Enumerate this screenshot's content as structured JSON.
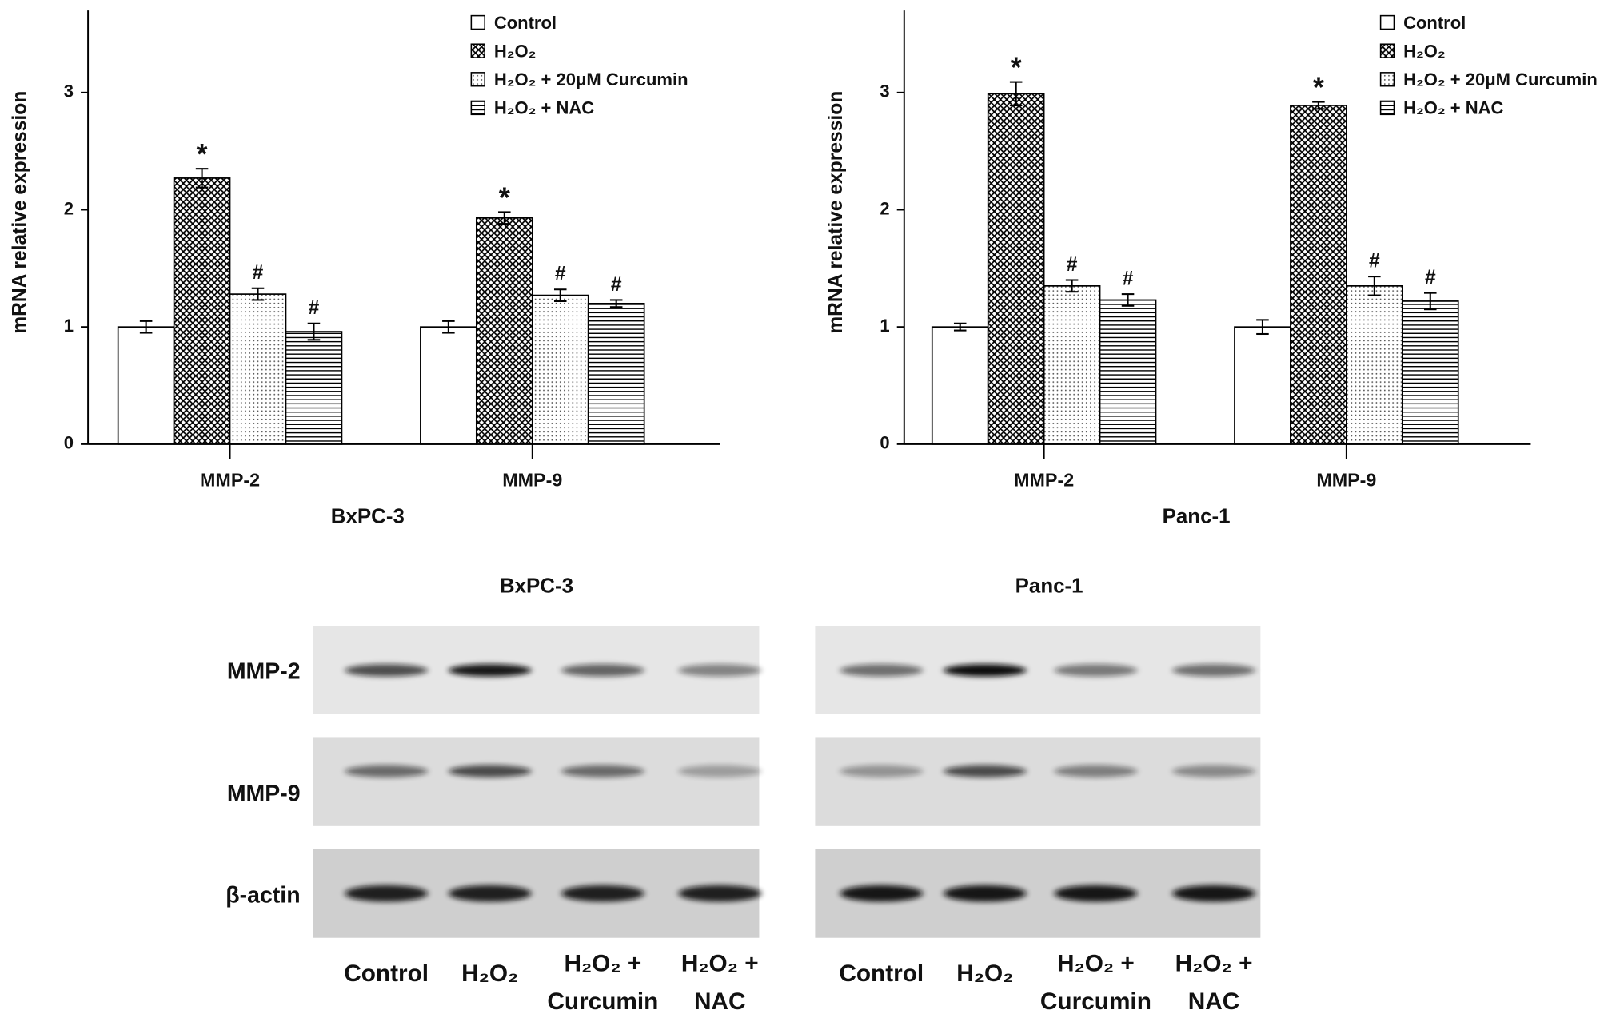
{
  "chart_data": [
    {
      "type": "bar",
      "ylabel": "mRNA relative expression",
      "xlabel": "BxPC-3",
      "categories": [
        "MMP-2",
        "MMP-9"
      ],
      "ylim": [
        0,
        3.7
      ],
      "yticks": [
        0,
        1,
        2,
        3
      ],
      "series": [
        {
          "name": "Control",
          "color": "#000000",
          "pattern": "none",
          "values": [
            1.0,
            1.0
          ],
          "errors": [
            0.05,
            0.05
          ],
          "annotations": [
            null,
            null
          ]
        },
        {
          "name": "H₂O₂",
          "color": "#000000",
          "pattern": "crosshatch",
          "values": [
            2.27,
            1.93
          ],
          "errors": [
            0.08,
            0.05
          ],
          "annotations": [
            "*",
            "*"
          ]
        },
        {
          "name": "H₂O₂ + 20μM Curcumin",
          "color": "#000000",
          "pattern": "dots",
          "values": [
            1.28,
            1.27
          ],
          "errors": [
            0.05,
            0.05
          ],
          "annotations": [
            "#",
            "#"
          ]
        },
        {
          "name": "H₂O₂ + NAC",
          "color": "#000000",
          "pattern": "hlines",
          "values": [
            0.96,
            1.2
          ],
          "errors": [
            0.07,
            0.03
          ],
          "annotations": [
            "#",
            "#"
          ]
        }
      ]
    },
    {
      "type": "bar",
      "ylabel": "mRNA relative expression",
      "xlabel": "Panc-1",
      "categories": [
        "MMP-2",
        "MMP-9"
      ],
      "ylim": [
        0,
        3.7
      ],
      "yticks": [
        0,
        1,
        2,
        3
      ],
      "series": [
        {
          "name": "Control",
          "color": "#000000",
          "pattern": "none",
          "values": [
            1.0,
            1.0
          ],
          "errors": [
            0.03,
            0.06
          ],
          "annotations": [
            null,
            null
          ]
        },
        {
          "name": "H₂O₂",
          "color": "#000000",
          "pattern": "crosshatch",
          "values": [
            2.99,
            2.89
          ],
          "errors": [
            0.1,
            0.03
          ],
          "annotations": [
            "*",
            "*"
          ]
        },
        {
          "name": "H₂O₂ + 20μM Curcumin",
          "color": "#000000",
          "pattern": "dots",
          "values": [
            1.35,
            1.35
          ],
          "errors": [
            0.05,
            0.08
          ],
          "annotations": [
            "#",
            "#"
          ]
        },
        {
          "name": "H₂O₂ + NAC",
          "color": "#000000",
          "pattern": "hlines",
          "values": [
            1.23,
            1.22
          ],
          "errors": [
            0.05,
            0.07
          ],
          "annotations": [
            "#",
            "#"
          ]
        }
      ]
    }
  ],
  "blots": [
    {
      "title": "BxPC-3",
      "rows": [
        "MMP-2",
        "MMP-9",
        "β-actin"
      ],
      "lanes": [
        [
          "Control"
        ],
        [
          "H₂O₂"
        ],
        [
          "H₂O₂ +",
          "Curcumin"
        ],
        [
          "H₂O₂ +",
          "NAC"
        ]
      ]
    },
    {
      "title": "Panc-1",
      "rows": [
        "MMP-2",
        "MMP-9",
        "β-actin"
      ],
      "lanes": [
        [
          "Control"
        ],
        [
          "H₂O₂"
        ],
        [
          "H₂O₂ +",
          "Curcumin"
        ],
        [
          "H₂O₂ +",
          "NAC"
        ]
      ]
    }
  ]
}
